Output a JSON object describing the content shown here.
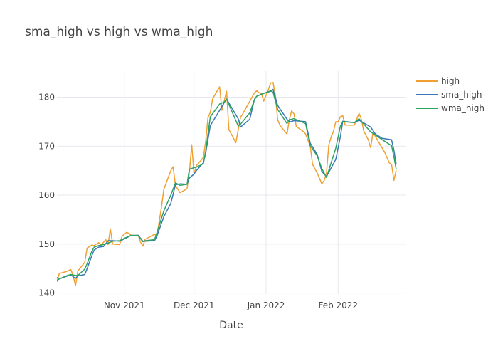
{
  "chart_data": {
    "type": "line",
    "title": "sma_high vs high vs wma_high",
    "xlabel": "Date",
    "ylabel": "",
    "xlim": [
      "2021-10-03",
      "2022-03-02"
    ],
    "ylim": [
      139.8,
      185.3
    ],
    "x_ticks": [
      {
        "date": "2021-11-01",
        "label": "Nov 2021"
      },
      {
        "date": "2021-12-01",
        "label": "Dec 2021"
      },
      {
        "date": "2022-01-01",
        "label": "Jan 2022"
      },
      {
        "date": "2022-02-01",
        "label": "Feb 2022"
      }
    ],
    "y_ticks": [
      140,
      150,
      160,
      170,
      180
    ],
    "grid": true,
    "legend_position": "top-right",
    "series": [
      {
        "name": "high",
        "color": "#f0a030",
        "points": [
          [
            "2021-10-03",
            142.3
          ],
          [
            "2021-10-04",
            144.0
          ],
          [
            "2021-10-07",
            144.4
          ],
          [
            "2021-10-09",
            144.8
          ],
          [
            "2021-10-10",
            143.5
          ],
          [
            "2021-10-11",
            141.5
          ],
          [
            "2021-10-12",
            144.5
          ],
          [
            "2021-10-15",
            146.3
          ],
          [
            "2021-10-16",
            149.2
          ],
          [
            "2021-10-18",
            149.8
          ],
          [
            "2021-10-19",
            149.7
          ],
          [
            "2021-10-21",
            150.3
          ],
          [
            "2021-10-22",
            149.8
          ],
          [
            "2021-10-24",
            150.9
          ],
          [
            "2021-10-25",
            149.9
          ],
          [
            "2021-10-26",
            153.1
          ],
          [
            "2021-10-27",
            150.0
          ],
          [
            "2021-10-30",
            149.9
          ],
          [
            "2021-10-31",
            151.6
          ],
          [
            "2021-11-02",
            152.4
          ],
          [
            "2021-11-03",
            152.2
          ],
          [
            "2021-11-04",
            151.7
          ],
          [
            "2021-11-07",
            151.8
          ],
          [
            "2021-11-08",
            150.4
          ],
          [
            "2021-11-09",
            149.6
          ],
          [
            "2021-11-10",
            151.0
          ],
          [
            "2021-11-14",
            152.0
          ],
          [
            "2021-11-15",
            151.6
          ],
          [
            "2021-11-17",
            157.6
          ],
          [
            "2021-11-18",
            161.2
          ],
          [
            "2021-11-21",
            165.0
          ],
          [
            "2021-11-22",
            165.8
          ],
          [
            "2021-11-23",
            162.0
          ],
          [
            "2021-11-25",
            160.5
          ],
          [
            "2021-11-28",
            161.3
          ],
          [
            "2021-11-29",
            164.6
          ],
          [
            "2021-11-30",
            170.3
          ],
          [
            "2021-12-01",
            164.3
          ],
          [
            "2021-12-02",
            166.0
          ],
          [
            "2021-12-05",
            167.7
          ],
          [
            "2021-12-06",
            171.0
          ],
          [
            "2021-12-07",
            175.8
          ],
          [
            "2021-12-08",
            176.9
          ],
          [
            "2021-12-09",
            179.7
          ],
          [
            "2021-12-12",
            182.1
          ],
          [
            "2021-12-13",
            177.3
          ],
          [
            "2021-12-15",
            181.2
          ],
          [
            "2021-12-16",
            173.4
          ],
          [
            "2021-12-19",
            170.7
          ],
          [
            "2021-12-21",
            175.9
          ],
          [
            "2021-12-22",
            176.6
          ],
          [
            "2021-12-27",
            180.9
          ],
          [
            "2021-12-28",
            181.3
          ],
          [
            "2021-12-29",
            180.9
          ],
          [
            "2021-12-30",
            180.7
          ],
          [
            "2021-12-31",
            179.2
          ],
          [
            "2022-01-02",
            181.6
          ],
          [
            "2022-01-03",
            182.9
          ],
          [
            "2022-01-04",
            183.0
          ],
          [
            "2022-01-05",
            180.4
          ],
          [
            "2022-01-06",
            175.4
          ],
          [
            "2022-01-07",
            174.2
          ],
          [
            "2022-01-10",
            172.5
          ],
          [
            "2022-01-11",
            175.4
          ],
          [
            "2022-01-12",
            177.2
          ],
          [
            "2022-01-13",
            176.6
          ],
          [
            "2022-01-14",
            174.0
          ],
          [
            "2022-01-17",
            173.0
          ],
          [
            "2022-01-18",
            172.5
          ],
          [
            "2022-01-20",
            170.0
          ],
          [
            "2022-01-21",
            166.3
          ],
          [
            "2022-01-23",
            164.5
          ],
          [
            "2022-01-25",
            162.3
          ],
          [
            "2022-01-26",
            163.0
          ],
          [
            "2022-01-27",
            164.5
          ],
          [
            "2022-01-28",
            170.3
          ],
          [
            "2022-01-29",
            171.9
          ],
          [
            "2022-01-30",
            173.0
          ],
          [
            "2022-01-31",
            175.0
          ],
          [
            "2022-02-01",
            175.0
          ],
          [
            "2022-02-02",
            176.0
          ],
          [
            "2022-02-03",
            176.2
          ],
          [
            "2022-02-04",
            174.3
          ],
          [
            "2022-02-08",
            174.3
          ],
          [
            "2022-02-10",
            176.7
          ],
          [
            "2022-02-11",
            175.5
          ],
          [
            "2022-02-12",
            173.1
          ],
          [
            "2022-02-14",
            171.3
          ],
          [
            "2022-02-15",
            169.7
          ],
          [
            "2022-02-16",
            172.8
          ],
          [
            "2022-02-17",
            172.0
          ],
          [
            "2022-02-20",
            169.6
          ],
          [
            "2022-02-21",
            168.8
          ],
          [
            "2022-02-23",
            166.6
          ],
          [
            "2022-02-24",
            166.3
          ],
          [
            "2022-02-25",
            163.0
          ],
          [
            "2022-02-26",
            165.1
          ]
        ]
      },
      {
        "name": "sma_high",
        "color": "#3b78b7",
        "points": [
          [
            "2021-10-03",
            143.2
          ],
          [
            "2021-10-04",
            142.9
          ],
          [
            "2021-10-07",
            143.4
          ],
          [
            "2021-10-09",
            143.7
          ],
          [
            "2021-10-11",
            143.0
          ],
          [
            "2021-10-12",
            143.5
          ],
          [
            "2021-10-15",
            143.8
          ],
          [
            "2021-10-16",
            145.0
          ],
          [
            "2021-10-18",
            147.6
          ],
          [
            "2021-10-19",
            148.8
          ],
          [
            "2021-10-21",
            149.4
          ],
          [
            "2021-10-23",
            149.5
          ],
          [
            "2021-10-25",
            150.7
          ],
          [
            "2021-10-27",
            150.7
          ],
          [
            "2021-10-30",
            150.6
          ],
          [
            "2021-11-02",
            151.3
          ],
          [
            "2021-11-04",
            151.8
          ],
          [
            "2021-11-07",
            151.8
          ],
          [
            "2021-11-09",
            150.6
          ],
          [
            "2021-11-10",
            150.6
          ],
          [
            "2021-11-14",
            150.7
          ],
          [
            "2021-11-15",
            151.6
          ],
          [
            "2021-11-18",
            155.6
          ],
          [
            "2021-11-21",
            158.3
          ],
          [
            "2021-11-23",
            162.1
          ],
          [
            "2021-11-25",
            162.3
          ],
          [
            "2021-11-28",
            162.2
          ],
          [
            "2021-11-29",
            163.5
          ],
          [
            "2021-12-01",
            164.3
          ],
          [
            "2021-12-02",
            165.0
          ],
          [
            "2021-12-05",
            166.6
          ],
          [
            "2021-12-06",
            168.6
          ],
          [
            "2021-12-08",
            174.2
          ],
          [
            "2021-12-12",
            177.3
          ],
          [
            "2021-12-14",
            178.9
          ],
          [
            "2021-12-15",
            179.6
          ],
          [
            "2021-12-20",
            175.6
          ],
          [
            "2021-12-21",
            173.9
          ],
          [
            "2021-12-25",
            175.5
          ],
          [
            "2021-12-27",
            179.6
          ],
          [
            "2021-12-28",
            180.2
          ],
          [
            "2021-12-30",
            180.6
          ],
          [
            "2022-01-03",
            181.2
          ],
          [
            "2022-01-04",
            181.6
          ],
          [
            "2022-01-06",
            178.3
          ],
          [
            "2022-01-10",
            175.5
          ],
          [
            "2022-01-11",
            174.9
          ],
          [
            "2022-01-13",
            175.2
          ],
          [
            "2022-01-18",
            175.0
          ],
          [
            "2022-01-20",
            170.6
          ],
          [
            "2022-01-23",
            168.3
          ],
          [
            "2022-01-25",
            164.8
          ],
          [
            "2022-01-27",
            163.8
          ],
          [
            "2022-01-31",
            167.3
          ],
          [
            "2022-02-02",
            172.0
          ],
          [
            "2022-02-03",
            175.1
          ],
          [
            "2022-02-08",
            174.8
          ],
          [
            "2022-02-10",
            175.3
          ],
          [
            "2022-02-15",
            173.9
          ],
          [
            "2022-02-17",
            172.5
          ],
          [
            "2022-02-20",
            171.6
          ],
          [
            "2022-02-24",
            171.3
          ],
          [
            "2022-02-25",
            169.2
          ],
          [
            "2022-02-26",
            166.3
          ]
        ]
      },
      {
        "name": "wma_high",
        "color": "#2ca25f",
        "points": [
          [
            "2021-10-03",
            142.6
          ],
          [
            "2021-10-04",
            142.9
          ],
          [
            "2021-10-07",
            143.5
          ],
          [
            "2021-10-09",
            143.8
          ],
          [
            "2021-10-11",
            143.6
          ],
          [
            "2021-10-12",
            143.6
          ],
          [
            "2021-10-15",
            144.9
          ],
          [
            "2021-10-16",
            146.0
          ],
          [
            "2021-10-18",
            148.5
          ],
          [
            "2021-10-19",
            149.4
          ],
          [
            "2021-10-21",
            149.7
          ],
          [
            "2021-10-23",
            149.9
          ],
          [
            "2021-10-25",
            150.2
          ],
          [
            "2021-10-27",
            150.6
          ],
          [
            "2021-10-30",
            150.7
          ],
          [
            "2021-11-02",
            151.4
          ],
          [
            "2021-11-04",
            151.8
          ],
          [
            "2021-11-07",
            151.7
          ],
          [
            "2021-11-09",
            150.5
          ],
          [
            "2021-11-10",
            150.7
          ],
          [
            "2021-11-14",
            150.9
          ],
          [
            "2021-11-15",
            152.3
          ],
          [
            "2021-11-18",
            156.8
          ],
          [
            "2021-11-21",
            160.0
          ],
          [
            "2021-11-23",
            162.5
          ],
          [
            "2021-11-25",
            162.0
          ],
          [
            "2021-11-28",
            162.2
          ],
          [
            "2021-11-29",
            165.3
          ],
          [
            "2021-12-01",
            165.6
          ],
          [
            "2021-12-02",
            165.7
          ],
          [
            "2021-12-05",
            166.4
          ],
          [
            "2021-12-06",
            169.0
          ],
          [
            "2021-12-08",
            176.0
          ],
          [
            "2021-12-12",
            178.6
          ],
          [
            "2021-12-14",
            179.0
          ],
          [
            "2021-12-15",
            179.6
          ],
          [
            "2021-12-20",
            174.1
          ],
          [
            "2021-12-21",
            174.5
          ],
          [
            "2021-12-25",
            176.8
          ],
          [
            "2021-12-27",
            179.5
          ],
          [
            "2021-12-28",
            180.2
          ],
          [
            "2021-12-30",
            180.6
          ],
          [
            "2022-01-03",
            181.3
          ],
          [
            "2022-01-04",
            181.0
          ],
          [
            "2022-01-06",
            177.5
          ],
          [
            "2022-01-10",
            174.6
          ],
          [
            "2022-01-11",
            175.4
          ],
          [
            "2022-01-13",
            175.6
          ],
          [
            "2022-01-18",
            174.6
          ],
          [
            "2022-01-20",
            170.1
          ],
          [
            "2022-01-23",
            168.0
          ],
          [
            "2022-01-25",
            165.4
          ],
          [
            "2022-01-27",
            163.6
          ],
          [
            "2022-01-31",
            169.6
          ],
          [
            "2022-02-02",
            174.1
          ],
          [
            "2022-02-03",
            175.0
          ],
          [
            "2022-02-08",
            174.8
          ],
          [
            "2022-02-10",
            175.6
          ],
          [
            "2022-02-15",
            172.9
          ],
          [
            "2022-02-17",
            172.3
          ],
          [
            "2022-02-20",
            171.3
          ],
          [
            "2022-02-24",
            170.1
          ],
          [
            "2022-02-25",
            167.8
          ],
          [
            "2022-02-26",
            165.3
          ]
        ]
      }
    ]
  }
}
